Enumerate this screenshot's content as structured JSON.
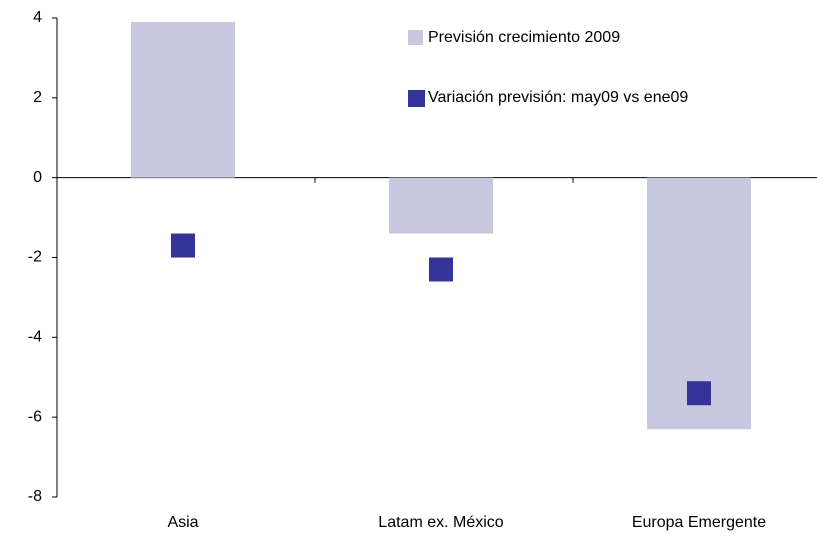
{
  "chart_data": {
    "type": "bar",
    "categories": [
      "Asia",
      "Latam ex. México",
      "Europa Emergente"
    ],
    "series": [
      {
        "name": "Previsión crecimiento 2009",
        "type": "bar",
        "color": "#c8c8e0",
        "values": [
          3.9,
          -1.4,
          -6.3
        ]
      },
      {
        "name": "Variación previsión: may09 vs ene09",
        "type": "scatter",
        "color": "#333399",
        "values": [
          -1.7,
          -2.3,
          -5.4
        ]
      }
    ],
    "ylim": [
      -8,
      4
    ],
    "yticks": [
      -8,
      -6,
      -4,
      -2,
      0,
      2,
      4
    ],
    "grid": false
  }
}
